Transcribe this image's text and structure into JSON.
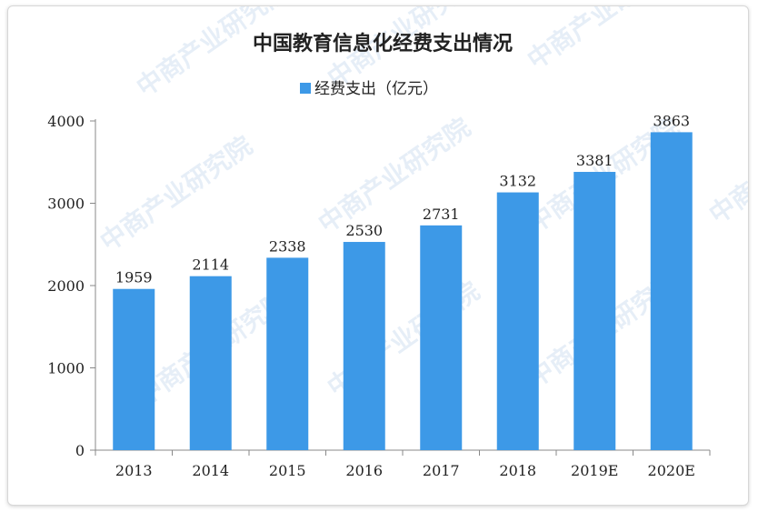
{
  "chart_data": {
    "type": "bar",
    "title": "中国教育信息化经费支出情况",
    "categories": [
      "2013",
      "2014",
      "2015",
      "2016",
      "2017",
      "2018",
      "2019E",
      "2020E"
    ],
    "series": [
      {
        "name": "经费支出（亿元）",
        "values": [
          1959,
          2114,
          2338,
          2530,
          2731,
          3132,
          3381,
          3863
        ]
      }
    ],
    "ylim": [
      0,
      4000
    ],
    "yticks": [
      0,
      1000,
      2000,
      3000,
      4000
    ],
    "grid": false,
    "legend": "top-center",
    "bar_color": "#3d99e7"
  },
  "watermark": "中商产业研究院"
}
